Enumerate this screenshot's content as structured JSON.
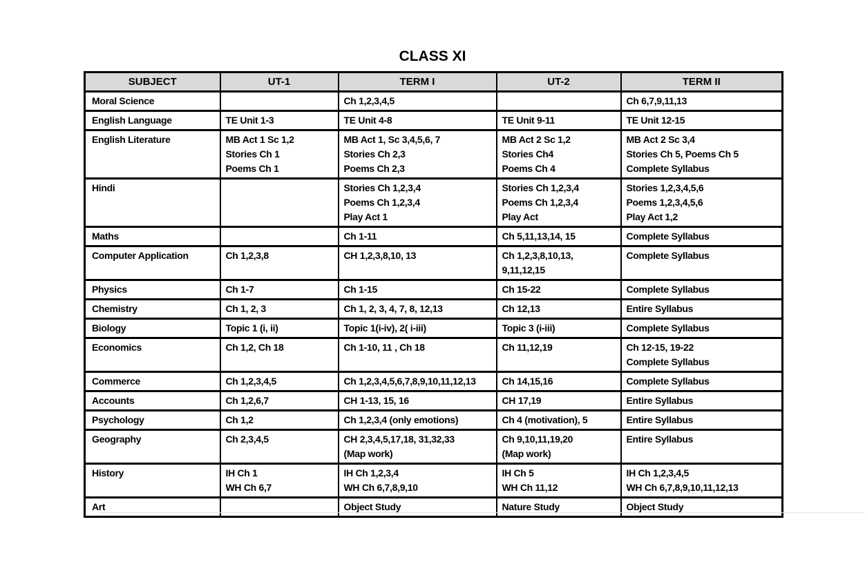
{
  "title": "CLASS XI",
  "table": {
    "headers": [
      "SUBJECT",
      "UT-1",
      "TERM I",
      "UT-2",
      "TERM II"
    ],
    "rows": [
      [
        "Moral Science",
        "",
        "Ch 1,2,3,4,5",
        "",
        "Ch 6,7,9,11,13"
      ],
      [
        "English Language",
        "TE Unit 1-3",
        "TE Unit 4-8",
        "TE Unit 9-11",
        "TE Unit 12-15"
      ],
      [
        "English Literature",
        "MB Act 1 Sc 1,2\nStories Ch 1\nPoems Ch 1",
        "MB Act 1, Sc 3,4,5,6, 7\nStories Ch 2,3\nPoems Ch 2,3",
        "MB Act 2 Sc 1,2\nStories Ch4\nPoems Ch 4",
        "MB Act 2 Sc 3,4\nStories Ch 5, Poems Ch 5\nComplete Syllabus"
      ],
      [
        "Hindi",
        "",
        "Stories Ch 1,2,3,4\nPoems Ch 1,2,3,4\nPlay Act 1",
        "Stories Ch 1,2,3,4\nPoems Ch 1,2,3,4\nPlay Act",
        "Stories 1,2,3,4,5,6\nPoems 1,2,3,4,5,6\nPlay Act 1,2"
      ],
      [
        "Maths",
        "",
        "Ch 1-11",
        "Ch 5,11,13,14, 15",
        "Complete Syllabus"
      ],
      [
        "Computer Application",
        "Ch 1,2,3,8",
        "CH 1,2,3,8,10, 13",
        "Ch 1,2,3,8,10,13,\n9,11,12,15",
        "Complete Syllabus"
      ],
      [
        "Physics",
        "Ch 1-7",
        "Ch 1-15",
        "Ch 15-22",
        "Complete Syllabus"
      ],
      [
        "Chemistry",
        "Ch 1, 2, 3",
        "Ch 1, 2, 3, 4, 7, 8, 12,13",
        "Ch 12,13",
        "Entire Syllabus"
      ],
      [
        "Biology",
        "Topic 1 (i, ii)",
        "Topic 1(i-iv), 2( i-iii)",
        "Topic 3 (i-iii)",
        "Complete Syllabus"
      ],
      [
        "Economics",
        "Ch 1,2, Ch 18",
        "Ch 1-10, 11 , Ch 18",
        "Ch 11,12,19",
        "Ch 12-15, 19-22\nComplete Syllabus"
      ],
      [
        "Commerce",
        "Ch 1,2,3,4,5",
        "Ch 1,2,3,4,5,6,7,8,9,10,11,12,13",
        "Ch 14,15,16",
        "Complete Syllabus"
      ],
      [
        "Accounts",
        "Ch 1,2,6,7",
        "CH 1-13, 15, 16",
        "CH 17,19",
        "Entire Syllabus"
      ],
      [
        "Psychology",
        "Ch 1,2",
        "Ch 1,2,3,4 (only emotions)",
        "Ch 4 (motivation), 5",
        "Entire Syllabus"
      ],
      [
        "Geography",
        "Ch 2,3,4,5",
        "CH 2,3,4,5,17,18, 31,32,33\n(Map work)",
        "Ch 9,10,11,19,20\n(Map work)",
        "Entire Syllabus"
      ],
      [
        "History",
        "IH Ch 1\nWH Ch 6,7",
        "IH Ch 1,2,3,4\nWH Ch 6,7,8,9,10",
        "IH Ch 5\nWH Ch 11,12",
        "IH Ch 1,2,3,4,5\nWH Ch 6,7,8,9,10,11,12,13"
      ],
      [
        "Art",
        "",
        "Object Study",
        "Nature Study",
        "Object Study"
      ]
    ],
    "row_line_classes": [
      "h1",
      "h1",
      "h3",
      "h3",
      "h1",
      "h2",
      "h1",
      "h1",
      "h1",
      "h2",
      "h1",
      "h1",
      "h1",
      "h2",
      "h2",
      "hs"
    ]
  },
  "colors": {
    "header_background": "#d9d9d9",
    "border": "#000000",
    "text": "#000000",
    "page_background": "#ffffff"
  }
}
